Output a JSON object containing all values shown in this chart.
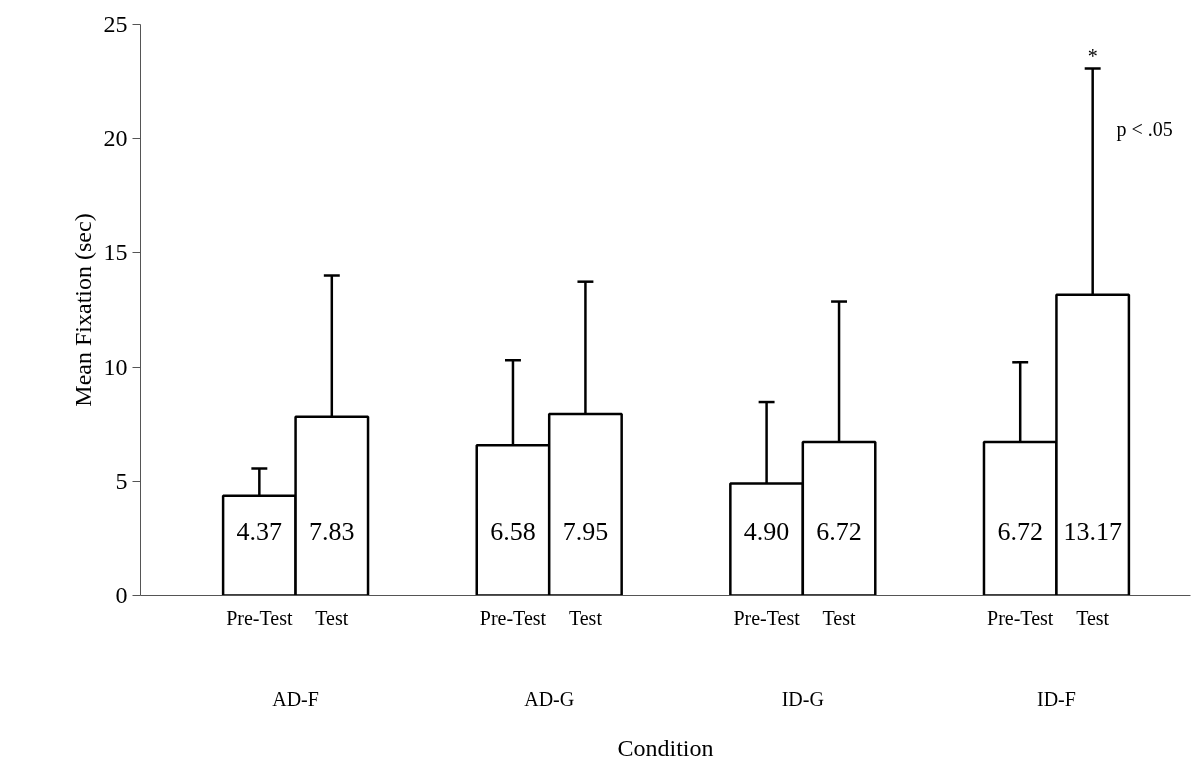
{
  "chart_data": {
    "type": "bar",
    "ylabel": "Mean Fixation (sec)",
    "xlabel": "Condition",
    "categories": [
      "Pre-Test",
      "Test",
      "Pre-Test",
      "Test",
      "Pre-Test",
      "Test",
      "Pre-Test",
      "Test"
    ],
    "values": [
      4.37,
      7.83,
      6.58,
      7.95,
      4.9,
      6.72,
      6.72,
      13.17
    ],
    "errors": [
      [
        4.37,
        5.56
      ],
      [
        7.83,
        14.01
      ],
      [
        6.58,
        10.3
      ],
      [
        7.95,
        13.74
      ],
      [
        4.9,
        8.47
      ],
      [
        6.72,
        12.87
      ],
      [
        6.72,
        10.21
      ],
      [
        13.17,
        23.07
      ]
    ],
    "value_labels": [
      "4.37",
      "7.83",
      "6.58",
      "7.95",
      "4.90",
      "6.72",
      "6.72",
      "13.17"
    ],
    "color": "#ffffff",
    "ylim": [
      0,
      25
    ],
    "yticks": [
      0,
      5,
      10,
      15,
      20,
      25
    ],
    "annotations": [
      "AD-F",
      "AD-G",
      "ID-G",
      "ID-F",
      "*",
      "p < .05"
    ]
  }
}
